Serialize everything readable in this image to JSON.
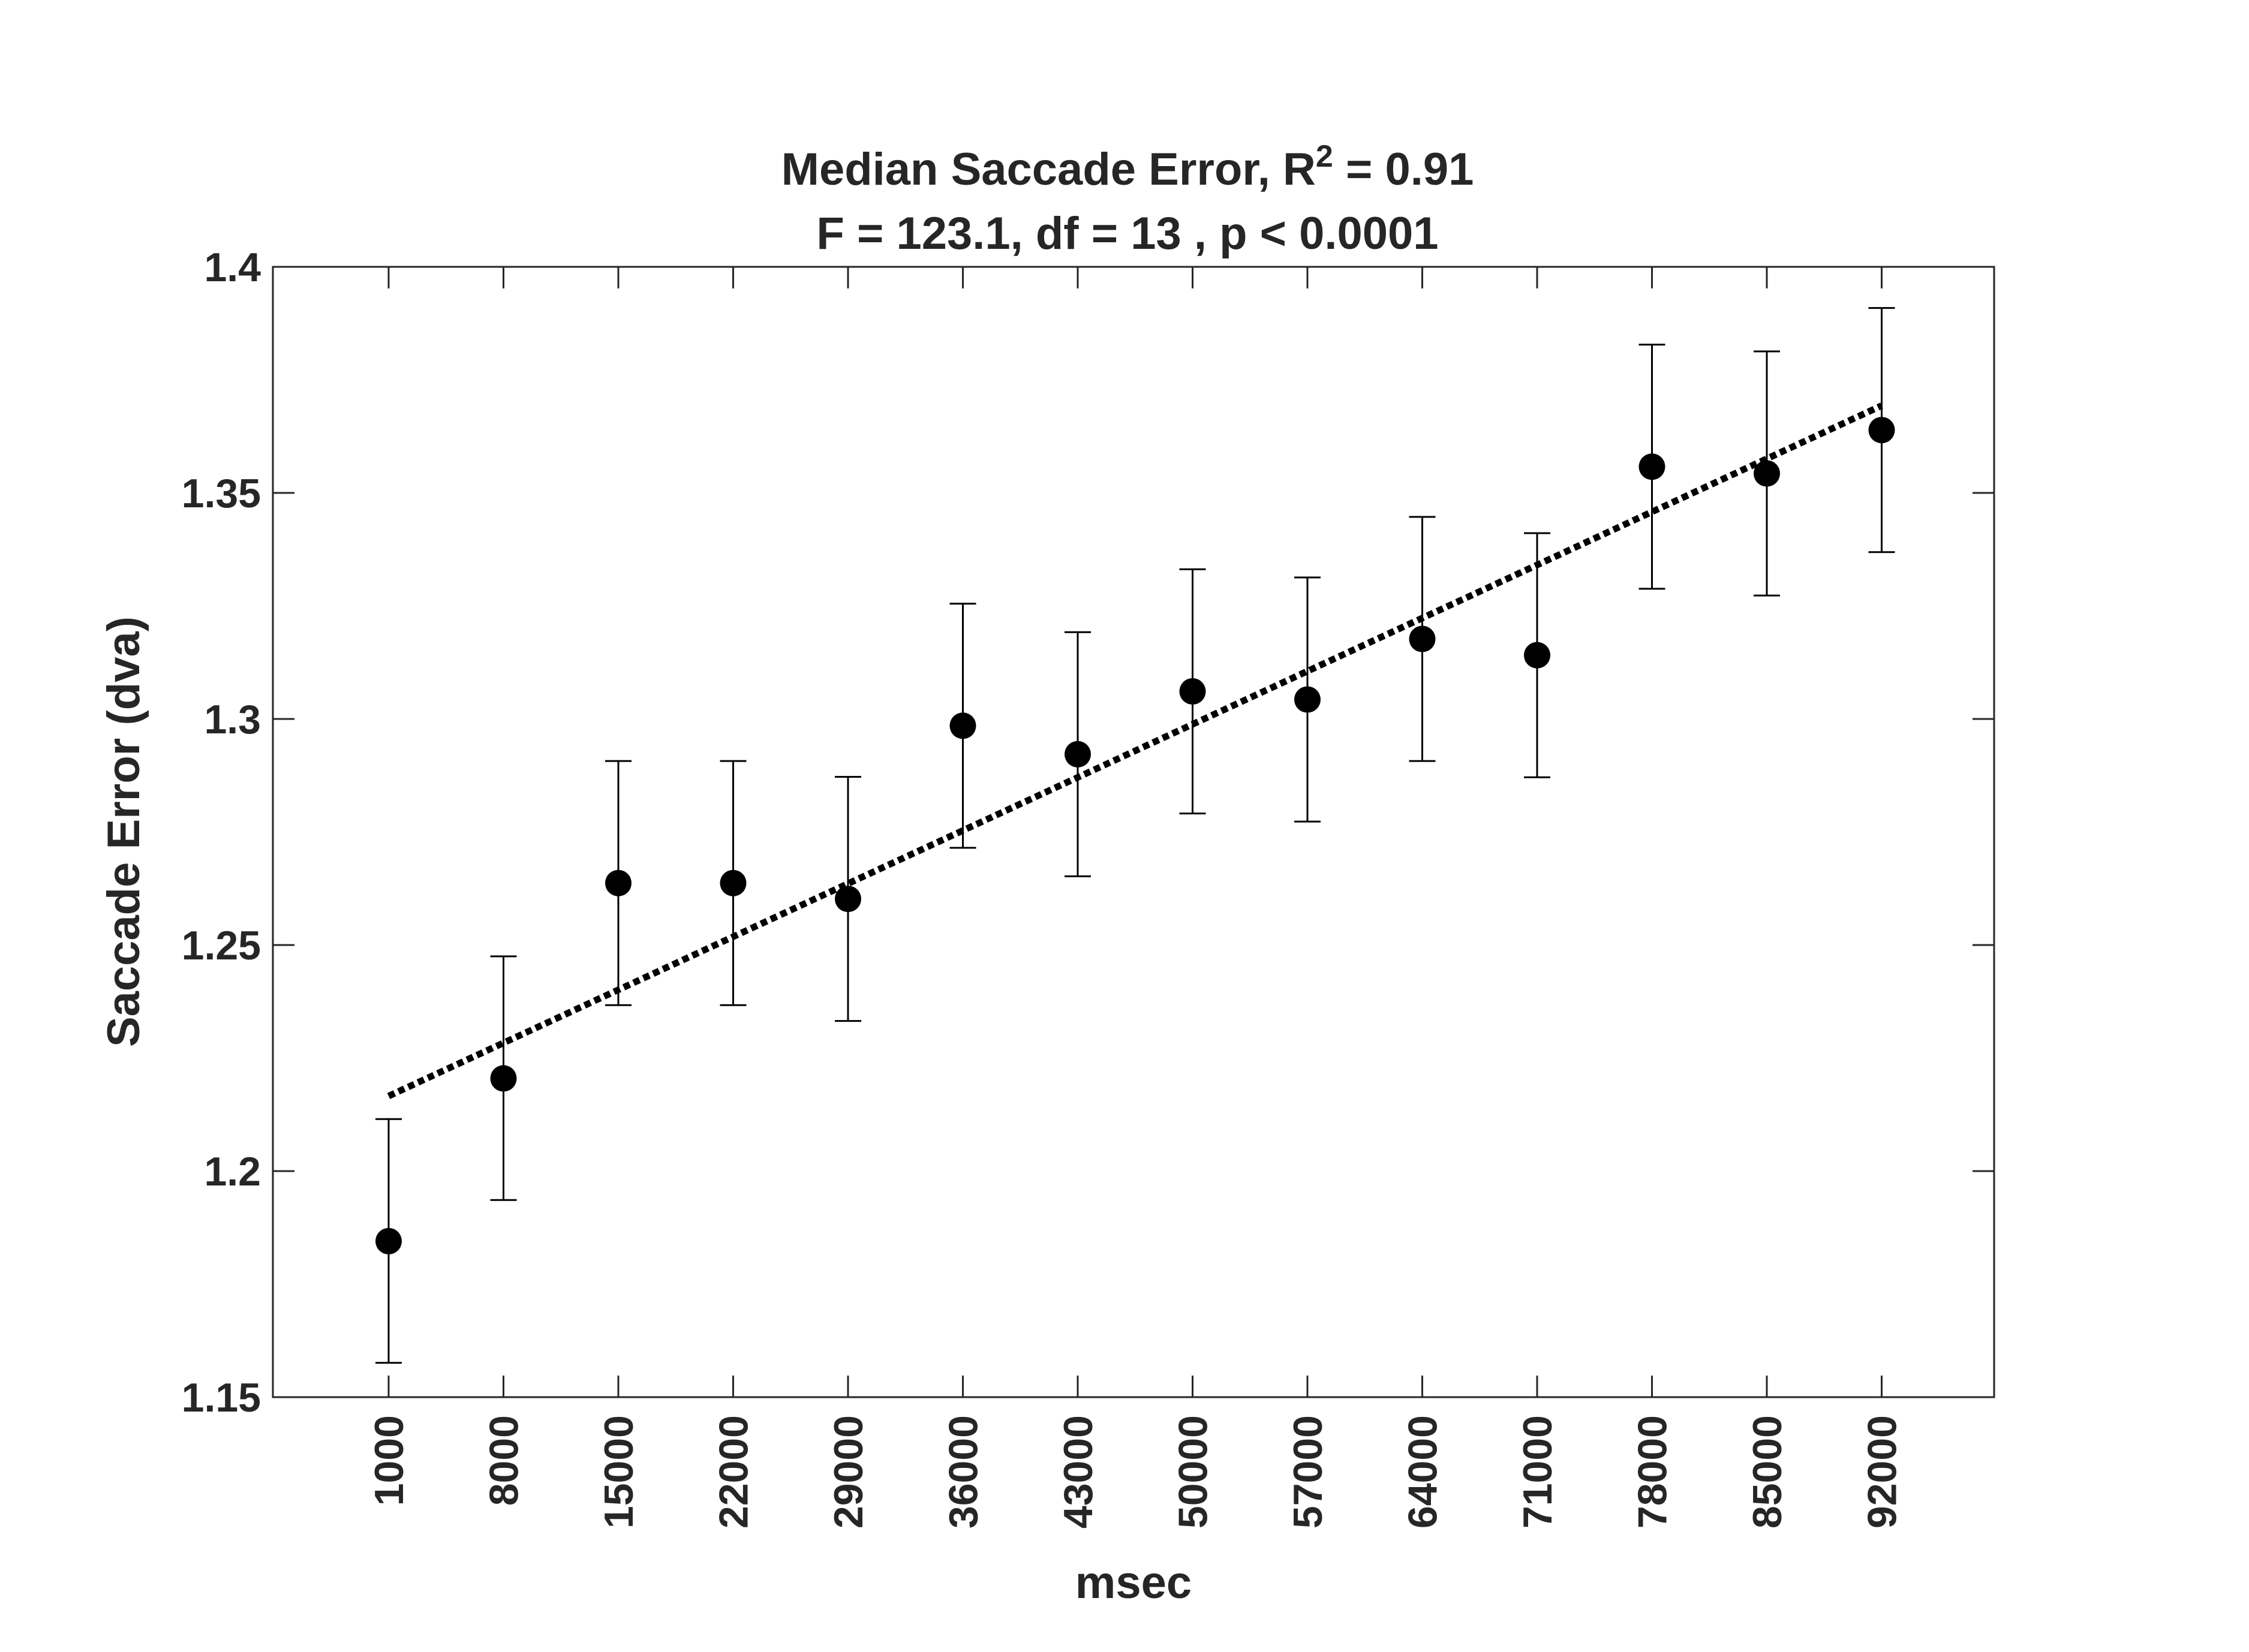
{
  "chart_data": {
    "type": "scatter",
    "title_prefix": "Median Saccade Error, R",
    "title_superscript": "2",
    "title_suffix": " = 0.91",
    "subtitle": "F = 123.1, df = 13 , p < 0.0001",
    "xlabel": "msec",
    "ylabel": "Saccade Error (dva)",
    "categories": [
      "1000",
      "8000",
      "15000",
      "22000",
      "29000",
      "36000",
      "43000",
      "50000",
      "57000",
      "64000",
      "71000",
      "78000",
      "85000",
      "92000"
    ],
    "ylim": [
      1.15,
      1.4
    ],
    "yticks": [
      "1.15",
      "1.2",
      "1.25",
      "1.3",
      "1.35",
      "1.4"
    ],
    "series": [
      {
        "values": [
          1.1845,
          1.2205,
          1.2637,
          1.2637,
          1.2602,
          1.2985,
          1.2922,
          1.3061,
          1.3043,
          1.3177,
          1.3141,
          1.3558,
          1.3543,
          1.3639
        ],
        "error_low": [
          1.1576,
          1.1936,
          1.2367,
          1.2367,
          1.2332,
          1.2715,
          1.2652,
          1.2791,
          1.2773,
          1.2907,
          1.2871,
          1.3288,
          1.3273,
          1.3369
        ],
        "error_high": [
          1.2115,
          1.2475,
          1.2907,
          1.2907,
          1.2872,
          1.3255,
          1.3192,
          1.3331,
          1.3313,
          1.3447,
          1.3411,
          1.3828,
          1.3813,
          1.3909
        ],
        "marker": "filled-circle",
        "color": "#000000"
      }
    ],
    "trendline": {
      "style": "dotted",
      "color": "#000000",
      "start": 1.2166,
      "end": 1.3693
    },
    "grid": false,
    "legend": "none"
  }
}
